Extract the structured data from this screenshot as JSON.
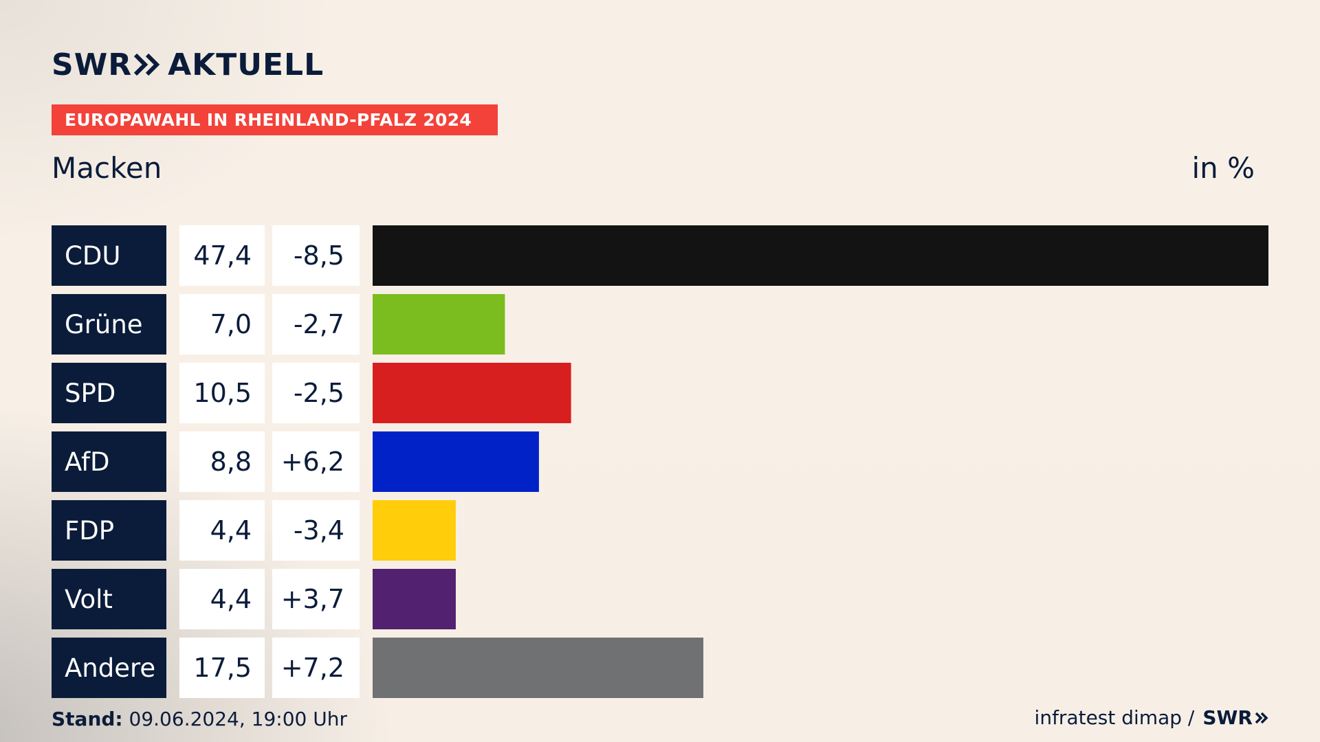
{
  "header": {
    "brand": "SWR",
    "brand_product": "AKTUELL",
    "badge": "EUROPAWAHL IN RHEINLAND-PFALZ 2024",
    "subtitle": "Macken",
    "unit": "in %"
  },
  "footer": {
    "stand_label": "Stand:",
    "stand_value": "09.06.2024, 19:00 Uhr",
    "source": "infratest dimap /",
    "source_brand": "SWR"
  },
  "colors": {
    "navy": "#0b1c3a",
    "badge": "#f2423a"
  },
  "chart_data": {
    "type": "bar",
    "orientation": "horizontal",
    "title": "Macken",
    "unit": "in %",
    "categories": [
      "CDU",
      "Grüne",
      "SPD",
      "AfD",
      "FDP",
      "Volt",
      "Andere"
    ],
    "values": [
      47.4,
      7.0,
      10.5,
      8.8,
      4.4,
      4.4,
      17.5
    ],
    "value_labels": [
      "47,4",
      "7,0",
      "10,5",
      "8,8",
      "4,4",
      "4,4",
      "17,5"
    ],
    "change_labels": [
      "-8,5",
      "-2,7",
      "-2,5",
      "+6,2",
      "-3,4",
      "+3,7",
      "+7,2"
    ],
    "colors": [
      "#131313",
      "#7bbd1e",
      "#d81f1f",
      "#0022c7",
      "#ffcd0a",
      "#52216f",
      "#707173"
    ],
    "xlim": [
      0,
      47.4
    ],
    "grid": false
  }
}
